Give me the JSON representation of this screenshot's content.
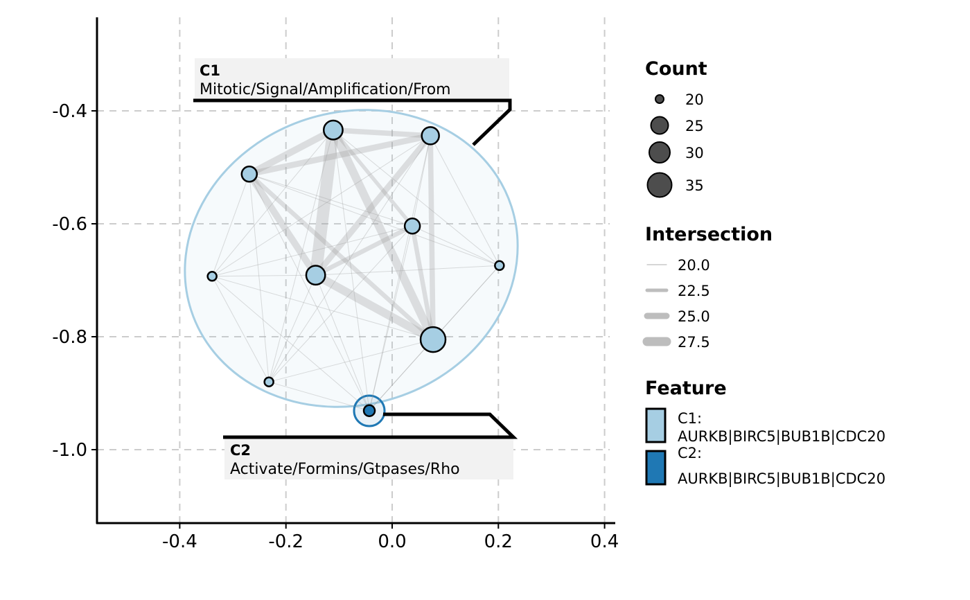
{
  "chart_data": {
    "type": "network",
    "xlim": [
      -0.55,
      0.42
    ],
    "ylim": [
      -1.13,
      -0.21
    ],
    "x_ticks": [
      -0.4,
      -0.2,
      0.0,
      0.2,
      0.4
    ],
    "x_tick_labels": [
      "-0.4",
      "-0.2",
      "0.0",
      "0.2",
      "0.4"
    ],
    "y_ticks": [
      -0.4,
      -0.6,
      -0.8,
      -1.0
    ],
    "y_tick_labels": [
      "-0.4",
      "-0.6",
      "-0.8",
      "-1.0"
    ],
    "grid": true,
    "nodes": [
      {
        "x": -0.111,
        "y": -0.434,
        "count": 27,
        "feature": "C1"
      },
      {
        "x": 0.072,
        "y": -0.444,
        "count": 25,
        "feature": "C1"
      },
      {
        "x": -0.269,
        "y": -0.512,
        "count": 24,
        "feature": "C1"
      },
      {
        "x": 0.038,
        "y": -0.604,
        "count": 24,
        "feature": "C1"
      },
      {
        "x": -0.144,
        "y": -0.691,
        "count": 27,
        "feature": "C1"
      },
      {
        "x": -0.339,
        "y": -0.693,
        "count": 21,
        "feature": "C1"
      },
      {
        "x": 0.202,
        "y": -0.674,
        "count": 21,
        "feature": "C1"
      },
      {
        "x": 0.077,
        "y": -0.805,
        "count": 35,
        "feature": "C1"
      },
      {
        "x": -0.232,
        "y": -0.88,
        "count": 21,
        "feature": "C1"
      },
      {
        "x": -0.043,
        "y": -0.931,
        "count": 22,
        "feature": "C2"
      }
    ],
    "edges": [
      [
        0,
        1,
        23
      ],
      [
        0,
        2,
        24
      ],
      [
        0,
        3,
        22
      ],
      [
        0,
        4,
        27.5
      ],
      [
        0,
        5,
        20
      ],
      [
        0,
        6,
        20
      ],
      [
        0,
        7,
        25
      ],
      [
        0,
        8,
        20
      ],
      [
        0,
        9,
        20
      ],
      [
        1,
        2,
        23.5
      ],
      [
        1,
        3,
        20
      ],
      [
        1,
        4,
        23.5
      ],
      [
        1,
        5,
        20
      ],
      [
        1,
        6,
        20
      ],
      [
        1,
        7,
        23
      ],
      [
        1,
        8,
        20
      ],
      [
        1,
        9,
        20
      ],
      [
        2,
        3,
        20
      ],
      [
        2,
        4,
        24
      ],
      [
        2,
        5,
        20
      ],
      [
        2,
        6,
        20
      ],
      [
        2,
        7,
        22.5
      ],
      [
        2,
        8,
        20
      ],
      [
        2,
        9,
        20
      ],
      [
        3,
        4,
        22.5
      ],
      [
        3,
        5,
        20
      ],
      [
        3,
        6,
        20
      ],
      [
        3,
        7,
        22.5
      ],
      [
        3,
        8,
        20
      ],
      [
        3,
        9,
        20
      ],
      [
        4,
        5,
        20
      ],
      [
        4,
        6,
        20
      ],
      [
        4,
        7,
        25
      ],
      [
        4,
        8,
        20
      ],
      [
        4,
        9,
        20
      ],
      [
        5,
        7,
        20
      ],
      [
        5,
        8,
        20
      ],
      [
        5,
        9,
        20
      ],
      [
        6,
        7,
        20
      ],
      [
        6,
        9,
        20
      ],
      [
        7,
        8,
        20
      ],
      [
        7,
        9,
        20
      ],
      [
        8,
        9,
        20
      ]
    ],
    "clusters": [
      {
        "id": "C1",
        "title": "C1",
        "label": "Mitotic/Signal/Amplification/From",
        "color": "#A6CEE3"
      },
      {
        "id": "C2",
        "title": "C2",
        "label": "Activate/Formins/Gtpases/Rho",
        "color": "#1F78B4"
      }
    ],
    "legend": {
      "placement": "right",
      "count": {
        "title": "Count",
        "values": [
          20,
          25,
          30,
          35
        ],
        "labels": [
          "20",
          "25",
          "30",
          "35"
        ]
      },
      "intersection": {
        "title": "Intersection",
        "values": [
          20,
          22.5,
          25,
          27.5
        ],
        "labels": [
          "20.0",
          "22.5",
          "25.0",
          "27.5"
        ]
      },
      "feature": {
        "title": "Feature",
        "items": [
          {
            "line1": "C1:",
            "line2": "AURKB|BIRC5|BUB1B|CDC20",
            "color": "#A6CEE3"
          },
          {
            "line1": "C2:",
            "line2": "AURKB|BIRC5|BUB1B|CDC20",
            "color": "#1F78B4"
          }
        ]
      }
    }
  }
}
